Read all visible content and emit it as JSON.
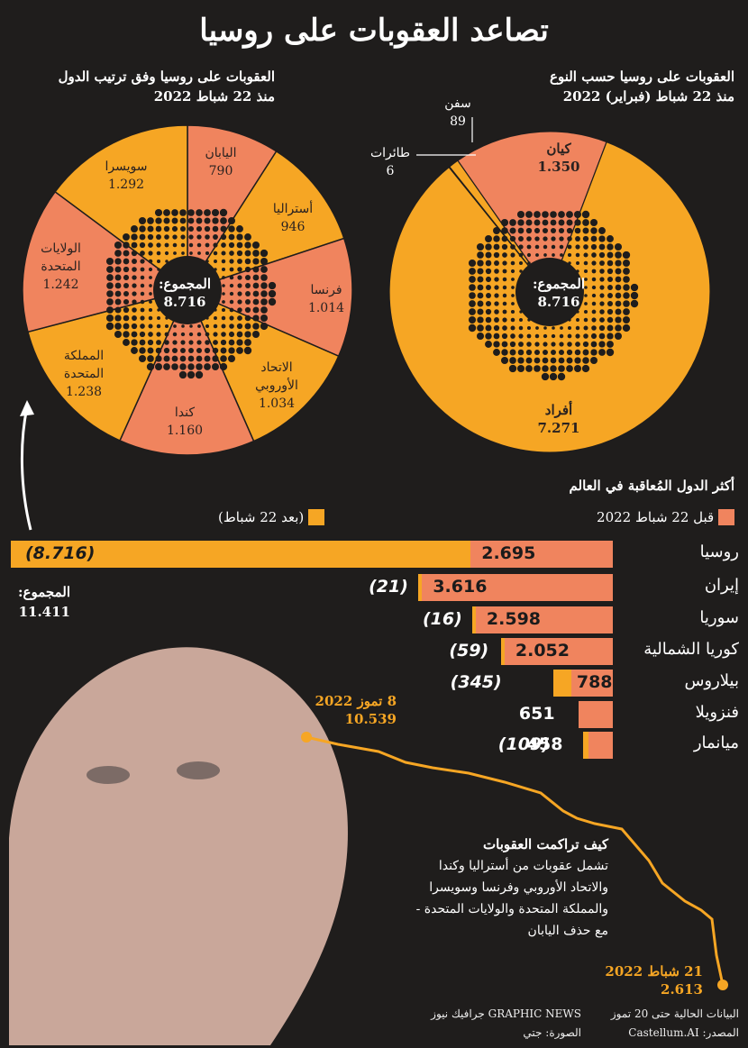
{
  "title": "تصاعد العقوبات على روسيا",
  "colors": {
    "before": "#f0845e",
    "after": "#f6a624",
    "bg": "#1f1d1c",
    "text_dark": "#2a2220"
  },
  "pie_by_country": {
    "heading_line1": "العقوبات على روسيا وفق ترتيب الدول",
    "heading_line2": "منذ 22 شباط 2022",
    "total_label": "المجموع:",
    "total_value": "8.716",
    "slices": [
      {
        "name": "اليابان",
        "value_text": "790",
        "value": 790
      },
      {
        "name": "أستراليا",
        "value_text": "946",
        "value": 946
      },
      {
        "name": "فرنسا",
        "value_text": "1.014",
        "value": 1014
      },
      {
        "name_line1": "الاتحاد",
        "name_line2": "الأوروبي",
        "value_text": "1.034",
        "value": 1034
      },
      {
        "name": "كندا",
        "value_text": "1.160",
        "value": 1160
      },
      {
        "name_line1": "المملكة",
        "name_line2": "المتحدة",
        "value_text": "1.238",
        "value": 1238
      },
      {
        "name_line1": "الولايات",
        "name_line2": "المتحدة",
        "value_text": "1.242",
        "value": 1242
      },
      {
        "name": "سويسرا",
        "value_text": "1.292",
        "value": 1292
      }
    ]
  },
  "pie_by_type": {
    "heading_line1": "العقوبات على روسيا حسب النوع",
    "heading_line2": "منذ 22 شباط (فبراير) 2022",
    "total_label": "المجموع:",
    "total_value": "8.716",
    "slices": [
      {
        "name": "كيان",
        "value_text": "1.350",
        "value": 1350
      },
      {
        "name": "أفراد",
        "value_text": "7.271",
        "value": 7271
      },
      {
        "name": "طائرات",
        "value_text": "6",
        "value": 6
      },
      {
        "name": "سفن",
        "value_text": "89",
        "value": 89
      }
    ]
  },
  "bar_section": {
    "heading": "أكثر الدول المُعاقبة في العالم",
    "legend_before": "قبل 22 شباط 2022",
    "legend_after": "(بعد 22 شباط)",
    "total_label": "المجموع:",
    "total_value": "11.411"
  },
  "chart_data": [
    {
      "type": "bar",
      "title": "أكثر الدول المُعاقبة في العالم",
      "categories": [
        "روسيا",
        "إيران",
        "سوريا",
        "كوريا الشمالية",
        "بيلاروس",
        "فنزويلا",
        "ميانمار"
      ],
      "series": [
        {
          "name": "قبل 22 شباط 2022",
          "values": [
            2695,
            3616,
            2598,
            2052,
            788,
            651,
            458
          ],
          "labels": [
            "2.695",
            "3.616",
            "2.598",
            "2.052",
            "788",
            "651",
            "458"
          ]
        },
        {
          "name": "(بعد 22 شباط)",
          "values": [
            8716,
            21,
            16,
            59,
            345,
            0,
            109
          ],
          "labels": [
            "(8.716)",
            "(21)",
            "(16)",
            "(59)",
            "(345)",
            "",
            "(109)"
          ]
        }
      ]
    },
    {
      "type": "line",
      "title": "كيف تراكمت العقوبات",
      "x": [
        "21 شباط 2022",
        "8 تموز 2022"
      ],
      "y": [
        2613,
        10539
      ]
    }
  ],
  "line_section": {
    "start_date": "21 شباط 2022",
    "start_value": "2.613",
    "end_date": "8 تموز 2022",
    "end_value": "10.539",
    "note_title": "كيف تراكمت العقوبات",
    "note_lines": [
      "تشمل عقوبات من أستراليا وكندا",
      "والاتحاد الأوروبي وفرنسا وسويسرا",
      "والمملكة المتحدة والولايات المتحدة -",
      "مع حذف اليابان"
    ]
  },
  "footer": {
    "data_note": "البيانات الحالية حتى 20 تموز",
    "source": "المصدر: Castellum.AI",
    "credit": "GRAPHIC NEWS جرافيك نيوز",
    "photo": "الصورة: جتي"
  }
}
